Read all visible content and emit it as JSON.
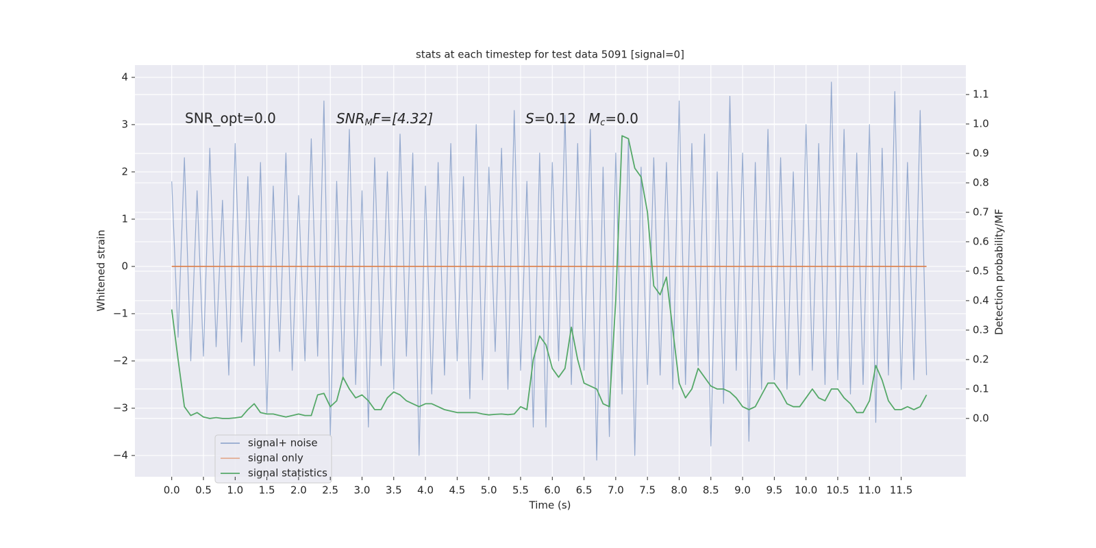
{
  "chart_data": {
    "type": "line",
    "title": "stats at each timestep for test data 5091 [signal=0]",
    "xlabel": "Time (s)",
    "ylabel": "Whitened strain",
    "y2label": "Detection probability/MF",
    "annotations": [
      "SNR_opt=0.0",
      "SNR",
      "M",
      "F=[4.32]",
      "S",
      "=0.12",
      "M",
      "c",
      "=0.0"
    ],
    "legend": "lower left",
    "grid": true,
    "background": "#eaeaf2",
    "xlim": [
      -0.58,
      12.52
    ],
    "ylim": [
      -4.45,
      4.26
    ],
    "y2lim": [
      -0.198,
      1.2
    ],
    "xticks": [
      {
        "value": 0,
        "label": "0.0"
      },
      {
        "value": 0.5,
        "label": "0.5"
      },
      {
        "value": 1,
        "label": "1.0"
      },
      {
        "value": 1.5,
        "label": "1.5"
      },
      {
        "value": 2,
        "label": "2.0"
      },
      {
        "value": 2.5,
        "label": "2.5"
      },
      {
        "value": 3,
        "label": "3.0"
      },
      {
        "value": 3.5,
        "label": "3.5"
      },
      {
        "value": 4,
        "label": "4.0"
      },
      {
        "value": 4.5,
        "label": "4.5"
      },
      {
        "value": 5,
        "label": "5.0"
      },
      {
        "value": 5.5,
        "label": "5.5"
      },
      {
        "value": 6,
        "label": "6.0"
      },
      {
        "value": 6.5,
        "label": "6.5"
      },
      {
        "value": 7,
        "label": "7.0"
      },
      {
        "value": 7.5,
        "label": "7.5"
      },
      {
        "value": 8,
        "label": "8.0"
      },
      {
        "value": 8.5,
        "label": "8.5"
      },
      {
        "value": 9,
        "label": "9.0"
      },
      {
        "value": 9.5,
        "label": "9.5"
      },
      {
        "value": 10,
        "label": "10.0"
      },
      {
        "value": 10.5,
        "label": "10.5"
      },
      {
        "value": 11,
        "label": "11.0"
      },
      {
        "value": 11.5,
        "label": "11.5"
      }
    ],
    "yticks": [
      {
        "value": -4,
        "label": "−4"
      },
      {
        "value": -3,
        "label": "−3"
      },
      {
        "value": -2,
        "label": "−2"
      },
      {
        "value": -1,
        "label": "−1"
      },
      0,
      1,
      2,
      3,
      4
    ],
    "y2ticks": [
      {
        "value": 0,
        "label": "0.0"
      },
      {
        "value": 0.1,
        "label": "0.1"
      },
      {
        "value": 0.2,
        "label": "0.2"
      },
      {
        "value": 0.3,
        "label": "0.3"
      },
      {
        "value": 0.4,
        "label": "0.4"
      },
      {
        "value": 0.5,
        "label": "0.5"
      },
      {
        "value": 0.6,
        "label": "0.6"
      },
      {
        "value": 0.7,
        "label": "0.7"
      },
      {
        "value": 0.8,
        "label": "0.8"
      },
      {
        "value": 0.9,
        "label": "0.9"
      },
      {
        "value": 1,
        "label": "1.0"
      },
      {
        "value": 1.1,
        "label": "1.1"
      }
    ],
    "x": [
      0,
      0.1,
      0.2,
      0.3,
      0.4,
      0.5,
      0.6,
      0.7,
      0.8,
      0.9,
      1,
      1.1,
      1.2,
      1.3,
      1.4,
      1.5,
      1.6,
      1.7,
      1.8,
      1.9,
      2,
      2.1,
      2.2,
      2.3,
      2.4,
      2.5,
      2.6,
      2.7,
      2.8,
      2.9,
      3,
      3.1,
      3.2,
      3.3,
      3.4,
      3.5,
      3.6,
      3.7,
      3.8,
      3.9,
      4,
      4.1,
      4.2,
      4.3,
      4.4,
      4.5,
      4.6,
      4.7,
      4.8,
      4.9,
      5,
      5.1,
      5.2,
      5.3,
      5.4,
      5.5,
      5.6,
      5.7,
      5.8,
      5.9,
      6,
      6.1,
      6.2,
      6.3,
      6.4,
      6.5,
      6.6,
      6.7,
      6.8,
      6.9,
      7,
      7.1,
      7.2,
      7.3,
      7.4,
      7.5,
      7.6,
      7.7,
      7.8,
      7.9,
      8,
      8.1,
      8.2,
      8.3,
      8.4,
      8.5,
      8.6,
      8.7,
      8.8,
      8.9,
      9,
      9.1,
      9.2,
      9.3,
      9.4,
      9.5,
      9.6,
      9.7,
      9.8,
      9.9,
      10,
      10.1,
      10.2,
      10.3,
      10.4,
      10.5,
      10.6,
      10.7,
      10.8,
      10.9,
      11,
      11.1,
      11.2,
      11.3,
      11.4,
      11.5,
      11.6,
      11.7,
      11.8,
      11.9
    ],
    "series": [
      {
        "name": "signal+ noise",
        "color": "#4c72b0",
        "values": [
          1.8,
          -1.5,
          2.3,
          -2.0,
          1.6,
          -1.9,
          2.5,
          -1.7,
          1.4,
          -2.3,
          2.6,
          -1.6,
          1.9,
          -2.1,
          2.2,
          -3.1,
          1.7,
          -1.8,
          2.4,
          -2.2,
          1.5,
          -2.0,
          2.7,
          -1.9,
          3.5,
          -3.6,
          1.8,
          -2.4,
          2.9,
          -2.5,
          1.6,
          -3.4,
          2.3,
          -2.1,
          2.0,
          -2.6,
          2.8,
          -1.9,
          2.4,
          -4.0,
          1.7,
          -2.7,
          2.2,
          -2.3,
          2.6,
          -2.0,
          1.9,
          -2.8,
          3.0,
          -2.4,
          2.1,
          -1.8,
          2.5,
          -2.6,
          3.3,
          -2.2,
          1.8,
          -3.4,
          2.4,
          -3.4,
          2.2,
          -2.0,
          3.2,
          -2.5,
          2.6,
          -2.2,
          2.9,
          -4.1,
          2.1,
          -3.6,
          2.4,
          -2.7,
          2.7,
          -4.0,
          2.1,
          -2.5,
          2.3,
          -2.3,
          2.2,
          -2.6,
          3.5,
          -2.5,
          2.6,
          -2.1,
          2.8,
          -3.8,
          2.0,
          -2.9,
          3.6,
          -2.2,
          2.4,
          -3.7,
          2.2,
          -2.6,
          2.9,
          -2.4,
          2.3,
          -2.6,
          2.0,
          -2.3,
          3.0,
          -2.2,
          2.6,
          -2.5,
          3.9,
          -2.4,
          2.9,
          -2.7,
          2.4,
          -2.5,
          3.0,
          -3.3,
          2.5,
          -2.3,
          3.7,
          -2.6,
          2.2,
          -2.4,
          3.3,
          -2.3
        ]
      },
      {
        "name": "signal only",
        "color": "#dd8452",
        "values": [
          0,
          0,
          0,
          0,
          0,
          0,
          0,
          0,
          0,
          0,
          0,
          0,
          0,
          0,
          0,
          0,
          0,
          0,
          0,
          0,
          0,
          0,
          0,
          0,
          0,
          0,
          0,
          0,
          0,
          0,
          0,
          0,
          0,
          0,
          0,
          0,
          0,
          0,
          0,
          0,
          0,
          0,
          0,
          0,
          0,
          0,
          0,
          0,
          0,
          0,
          0,
          0,
          0,
          0,
          0,
          0,
          0,
          0,
          0,
          0,
          0,
          0,
          0,
          0,
          0,
          0,
          0,
          0,
          0,
          0,
          0,
          0,
          0,
          0,
          0,
          0,
          0,
          0,
          0,
          0,
          0,
          0,
          0,
          0,
          0,
          0,
          0,
          0,
          0,
          0,
          0,
          0,
          0,
          0,
          0,
          0,
          0,
          0,
          0,
          0,
          0,
          0,
          0,
          0,
          0,
          0,
          0,
          0,
          0,
          0,
          0,
          0,
          0,
          0,
          0,
          0,
          0,
          0,
          0,
          0
        ]
      },
      {
        "name": "signal statistics",
        "color": "#55a868",
        "axis": "y2",
        "values": [
          0.37,
          0.2,
          0.04,
          0.01,
          0.02,
          0.005,
          0.0,
          0.003,
          0.0,
          0.0,
          0.002,
          0.005,
          0.03,
          0.05,
          0.02,
          0.015,
          0.015,
          0.01,
          0.005,
          0.01,
          0.015,
          0.01,
          0.01,
          0.08,
          0.085,
          0.04,
          0.06,
          0.14,
          0.1,
          0.07,
          0.08,
          0.06,
          0.03,
          0.03,
          0.07,
          0.09,
          0.08,
          0.06,
          0.05,
          0.04,
          0.05,
          0.05,
          0.04,
          0.03,
          0.025,
          0.02,
          0.02,
          0.02,
          0.02,
          0.015,
          0.012,
          0.014,
          0.015,
          0.013,
          0.015,
          0.04,
          0.03,
          0.2,
          0.28,
          0.25,
          0.17,
          0.14,
          0.17,
          0.31,
          0.2,
          0.12,
          0.11,
          0.1,
          0.05,
          0.04,
          0.4,
          0.96,
          0.95,
          0.85,
          0.82,
          0.7,
          0.45,
          0.42,
          0.48,
          0.3,
          0.12,
          0.07,
          0.1,
          0.17,
          0.14,
          0.11,
          0.1,
          0.1,
          0.09,
          0.07,
          0.04,
          0.03,
          0.04,
          0.08,
          0.12,
          0.12,
          0.09,
          0.05,
          0.04,
          0.04,
          0.07,
          0.1,
          0.07,
          0.06,
          0.1,
          0.1,
          0.07,
          0.05,
          0.02,
          0.02,
          0.06,
          0.18,
          0.13,
          0.06,
          0.03,
          0.03,
          0.04,
          0.03,
          0.04,
          0.08
        ]
      }
    ]
  }
}
